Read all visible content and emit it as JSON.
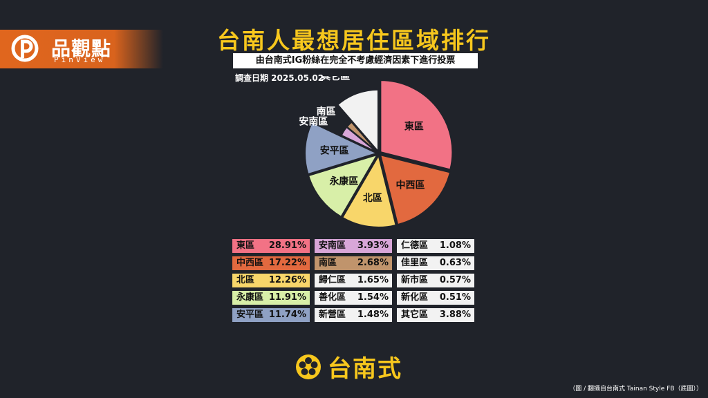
{
  "header": {
    "logo_text": "品觀點",
    "logo_sub": "PinView"
  },
  "title": "台南人最想居住區域排行",
  "subtitle": "由台南式IG粉絲在完全不考慮經濟因素下進行投票",
  "date": "調查日期 2025.05.02",
  "chart_data": {
    "type": "pie",
    "slices": [
      {
        "label": "東區",
        "value": 28.91,
        "color": "#f27285"
      },
      {
        "label": "中西區",
        "value": 17.22,
        "color": "#e2693f"
      },
      {
        "label": "北區",
        "value": 12.26,
        "color": "#f8d66a"
      },
      {
        "label": "永康區",
        "value": 11.91,
        "color": "#d8efa8"
      },
      {
        "label": "安平區",
        "value": 11.74,
        "color": "#8fa1c4"
      },
      {
        "label": "安南區",
        "value": 3.93,
        "color": "#d8a6d8"
      },
      {
        "label": "南區",
        "value": 2.68,
        "color": "#c0946c"
      },
      {
        "label": "其它區",
        "value": 11.35,
        "color": "#f2f2f2"
      }
    ]
  },
  "table": {
    "columns": [
      [
        {
          "name": "東區",
          "value": "28.91%",
          "color": "#f27285"
        },
        {
          "name": "中西區",
          "value": "17.22%",
          "color": "#e2693f"
        },
        {
          "name": "北區",
          "value": "12.26%",
          "color": "#f8d66a"
        },
        {
          "name": "永康區",
          "value": "11.91%",
          "color": "#d8efa8"
        },
        {
          "name": "安平區",
          "value": "11.74%",
          "color": "#8fa1c4"
        }
      ],
      [
        {
          "name": "安南區",
          "value": "3.93%",
          "color": "#d8a6d8"
        },
        {
          "name": "南區",
          "value": "2.68%",
          "color": "#c0946c"
        },
        {
          "name": "歸仁區",
          "value": "1.65%",
          "color": "#f2f2f2"
        },
        {
          "name": "善化區",
          "value": "1.54%",
          "color": "#f2f2f2"
        },
        {
          "name": "新營區",
          "value": "1.48%",
          "color": "#f2f2f2"
        }
      ],
      [
        {
          "name": "仁德區",
          "value": "1.08%",
          "color": "#f2f2f2"
        },
        {
          "name": "佳里區",
          "value": "0.63%",
          "color": "#f2f2f2"
        },
        {
          "name": "新市區",
          "value": "0.57%",
          "color": "#f2f2f2"
        },
        {
          "name": "新化區",
          "value": "0.51%",
          "color": "#f2f2f2"
        },
        {
          "name": "其它區",
          "value": "3.88%",
          "color": "#f2f2f2"
        }
      ]
    ]
  },
  "brand": "台南式",
  "credit": "（圖 / 翻攝自台南式 Tainan Style FB（底圖））",
  "colors": {
    "accent": "#f7c71d",
    "logo_orange": "#e0661e",
    "background": "#20232a"
  }
}
